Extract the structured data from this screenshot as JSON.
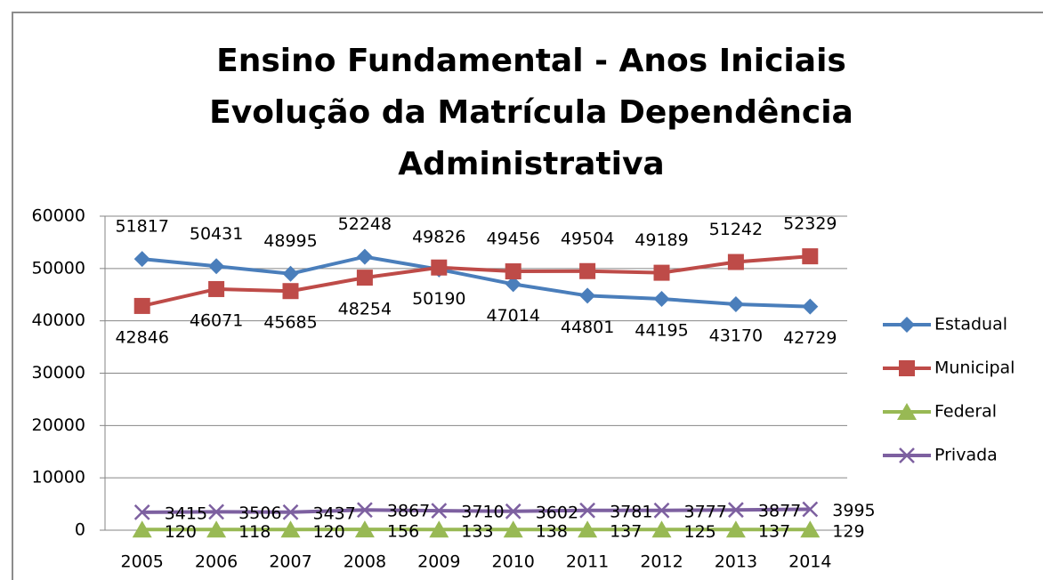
{
  "chart_data": {
    "type": "line",
    "title": [
      "Ensino Fundamental - Anos Iniciais",
      "Evolução da Matrícula Dependência",
      "Administrativa"
    ],
    "categories": [
      "2005",
      "2006",
      "2007",
      "2008",
      "2009",
      "2010",
      "2011",
      "2012",
      "2013",
      "2014"
    ],
    "series": [
      {
        "name": "Estadual",
        "color": "#4a7ebb",
        "marker": "diamond",
        "values": [
          51817,
          50431,
          48995,
          52248,
          49826,
          47014,
          44801,
          44195,
          43170,
          42729
        ]
      },
      {
        "name": "Municipal",
        "color": "#be4b48",
        "marker": "square",
        "values": [
          42846,
          46071,
          45685,
          48254,
          50190,
          49456,
          49504,
          49189,
          51242,
          52329
        ]
      },
      {
        "name": "Federal",
        "color": "#98b954",
        "marker": "triangle",
        "values": [
          120,
          118,
          120,
          156,
          133,
          138,
          137,
          125,
          137,
          129
        ]
      },
      {
        "name": "Privada",
        "color": "#7d60a0",
        "marker": "x",
        "values": [
          3415,
          3506,
          3437,
          3867,
          3710,
          3602,
          3781,
          3777,
          3877,
          3995
        ]
      }
    ],
    "ylim": [
      0,
      60000
    ],
    "yticks": [
      0,
      10000,
      20000,
      30000,
      40000,
      50000,
      60000
    ],
    "grid": true,
    "legend": "right"
  }
}
